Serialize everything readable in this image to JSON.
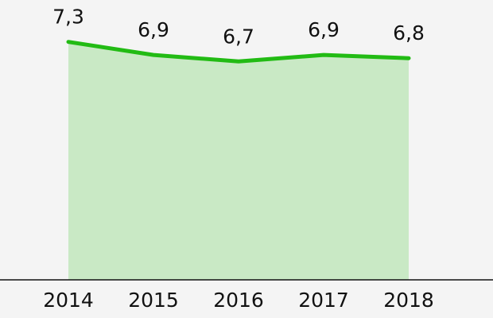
{
  "chart_data": {
    "type": "area",
    "categories": [
      "2014",
      "2015",
      "2016",
      "2017",
      "2018"
    ],
    "values": [
      7.3,
      6.9,
      6.7,
      6.9,
      6.8
    ],
    "value_labels": [
      "7,3",
      "6,9",
      "6,7",
      "6,9",
      "6,8"
    ],
    "color": "#22bb14",
    "fill_color": "#c9e9c5",
    "ylim": [
      0,
      8.5
    ]
  }
}
